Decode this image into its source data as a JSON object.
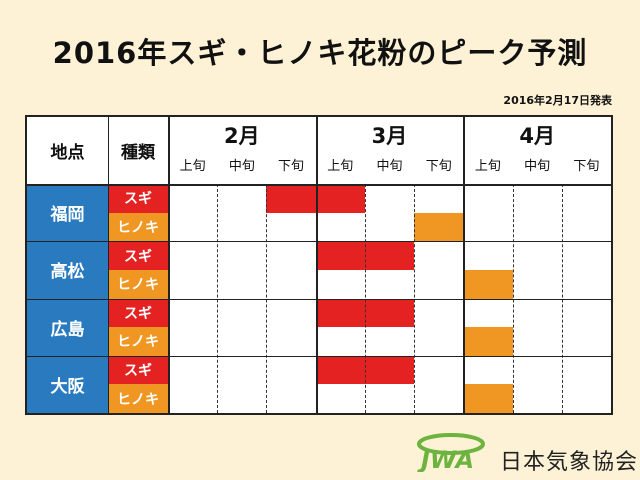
{
  "title": "2016年スギ・ヒノキ花粉のピーク予測",
  "published": "2016年2月17日発表",
  "header": {
    "location_label": "地点",
    "type_label": "種類",
    "months": [
      "2月",
      "3月",
      "4月"
    ],
    "periods": [
      "上旬",
      "中旬",
      "下旬"
    ]
  },
  "pollen_types": {
    "sugi": "スギ",
    "hinoki": "ヒノキ"
  },
  "cities": [
    {
      "name": "福岡",
      "sugi_peak": [
        "2月下旬",
        "3月上旬"
      ],
      "hinoki_peak": [
        "3月下旬"
      ]
    },
    {
      "name": "高松",
      "sugi_peak": [
        "3月上旬",
        "3月中旬"
      ],
      "hinoki_peak": [
        "4月上旬"
      ]
    },
    {
      "name": "広島",
      "sugi_peak": [
        "3月上旬",
        "3月中旬"
      ],
      "hinoki_peak": [
        "4月上旬"
      ]
    },
    {
      "name": "大阪",
      "sugi_peak": [
        "3月上旬",
        "3月中旬"
      ],
      "hinoki_peak": [
        "4月上旬"
      ]
    }
  ],
  "colors": {
    "sugi": "#e42222",
    "hinoki": "#ef9722",
    "city": "#2a7ac0"
  },
  "logo": {
    "emblem_text": "JWA",
    "org_name": "日本気象協会"
  }
}
